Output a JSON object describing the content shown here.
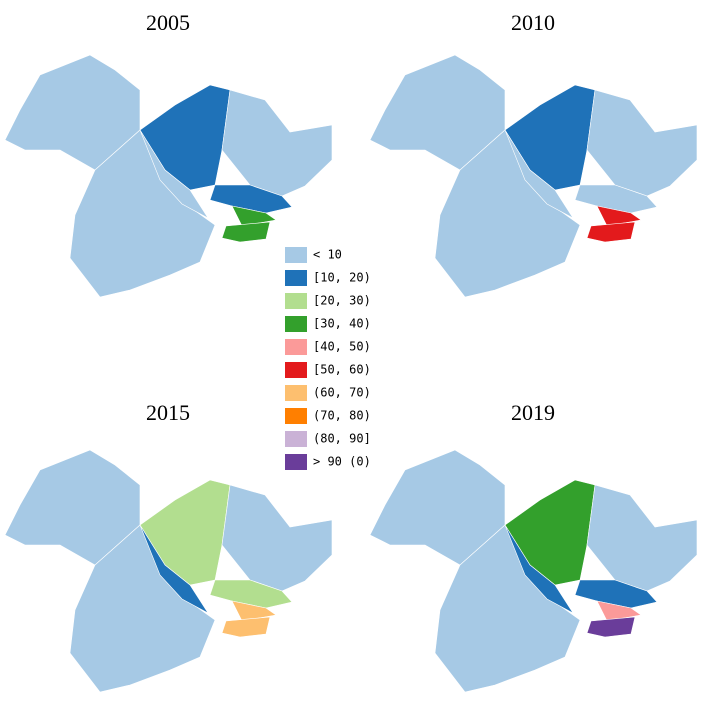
{
  "maps": [
    {
      "title": "2005",
      "region_colors": [
        "#a6c9e5",
        "#a6c9e5",
        "#1f72b8",
        "#a6c9e5",
        "#a6c9e5",
        "#1f72b8",
        "#33a02c",
        "#33a02c"
      ]
    },
    {
      "title": "2010",
      "region_colors": [
        "#a6c9e5",
        "#a6c9e5",
        "#1f72b8",
        "#a6c9e5",
        "#a6c9e5",
        "#a6c9e5",
        "#e31a1c",
        "#e31a1c"
      ]
    },
    {
      "title": "2015",
      "region_colors": [
        "#a6c9e5",
        "#a6c9e5",
        "#b2de8f",
        "#1f72b8",
        "#a6c9e5",
        "#b2de8f",
        "#fdbf6f",
        "#fdbf6f"
      ]
    },
    {
      "title": "2019",
      "region_colors": [
        "#a6c9e5",
        "#a6c9e5",
        "#33a02c",
        "#1f72b8",
        "#a6c9e5",
        "#1f72b8",
        "#fb9a99",
        "#6a3d9a"
      ]
    }
  ],
  "legend": [
    {
      "label": "< 10",
      "color": "#a6c9e5"
    },
    {
      "label": "[10, 20)",
      "color": "#1f72b8"
    },
    {
      "label": "[20, 30)",
      "color": "#b2de8f"
    },
    {
      "label": "[30, 40)",
      "color": "#33a02c"
    },
    {
      "label": "[40, 50)",
      "color": "#fb9a99"
    },
    {
      "label": "[50, 60)",
      "color": "#e31a1c"
    },
    {
      "label": "(60, 70)",
      "color": "#fdbf6f"
    },
    {
      "label": "(70, 80)",
      "color": "#ff7f00"
    },
    {
      "label": "(80, 90]",
      "color": "#cab2d6"
    },
    {
      "label": "> 90 (0)",
      "color": "#6a3d9a"
    }
  ]
}
